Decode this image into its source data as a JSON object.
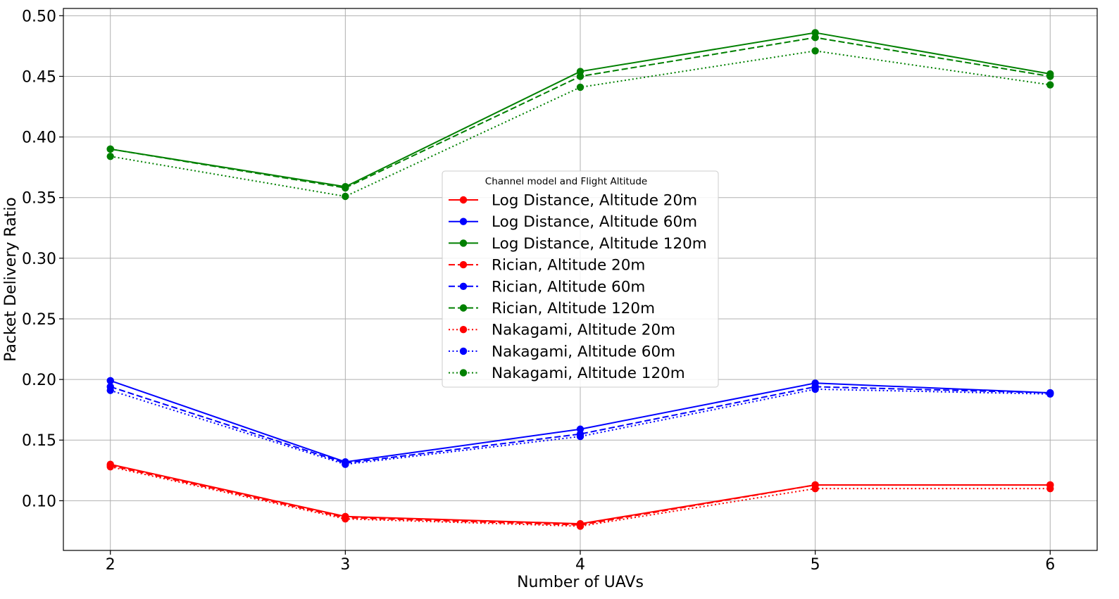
{
  "chart_data": {
    "type": "line",
    "xlabel": "Number of UAVs",
    "ylabel": "Packet Delivery Ratio",
    "x": [
      2,
      3,
      4,
      5,
      6
    ],
    "xlim": [
      1.8,
      6.2
    ],
    "ylim": [
      0.059,
      0.506
    ],
    "x_ticks": [
      "2",
      "3",
      "4",
      "5",
      "6"
    ],
    "y_ticks": [
      0.1,
      0.15,
      0.2,
      0.25,
      0.3,
      0.35,
      0.4,
      0.45,
      0.5
    ],
    "y_tick_labels": [
      "0.10",
      "0.15",
      "0.20",
      "0.25",
      "0.30",
      "0.35",
      "0.40",
      "0.45",
      "0.50"
    ],
    "grid": true,
    "legend": {
      "title": "Channel model and Flight Altitude",
      "placement": "center"
    },
    "series": [
      {
        "name": "Log Distance, Altitude 20m",
        "color": "#ff0000",
        "style": "solid",
        "values": [
          0.13,
          0.087,
          0.081,
          0.113,
          0.113
        ]
      },
      {
        "name": "Log Distance, Altitude 60m",
        "color": "#0000ff",
        "style": "solid",
        "values": [
          0.199,
          0.132,
          0.159,
          0.197,
          0.189
        ]
      },
      {
        "name": "Log Distance, Altitude 120m",
        "color": "#008000",
        "style": "solid",
        "values": [
          0.39,
          0.359,
          0.454,
          0.486,
          0.452
        ]
      },
      {
        "name": "Rician, Altitude 20m",
        "color": "#ff0000",
        "style": "dashed",
        "values": [
          0.129,
          0.086,
          0.08,
          0.113,
          0.113
        ]
      },
      {
        "name": "Rician, Altitude 60m",
        "color": "#0000ff",
        "style": "dashed",
        "values": [
          0.194,
          0.131,
          0.155,
          0.194,
          0.189
        ]
      },
      {
        "name": "Rician, Altitude 120m",
        "color": "#008000",
        "style": "dashed",
        "values": [
          0.39,
          0.358,
          0.45,
          0.482,
          0.45
        ]
      },
      {
        "name": "Nakagami, Altitude 20m",
        "color": "#ff0000",
        "style": "dotted",
        "values": [
          0.128,
          0.085,
          0.079,
          0.11,
          0.11
        ]
      },
      {
        "name": "Nakagami, Altitude 60m",
        "color": "#0000ff",
        "style": "dotted",
        "values": [
          0.191,
          0.13,
          0.153,
          0.192,
          0.188
        ]
      },
      {
        "name": "Nakagami, Altitude 120m",
        "color": "#008000",
        "style": "dotted",
        "values": [
          0.384,
          0.351,
          0.441,
          0.471,
          0.443
        ]
      }
    ]
  }
}
